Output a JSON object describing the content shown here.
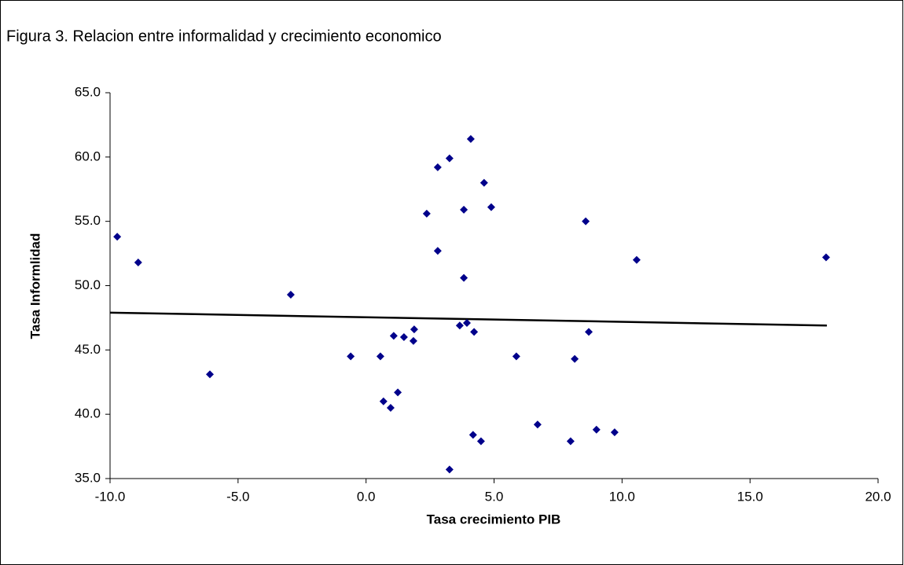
{
  "chart_data": {
    "type": "scatter",
    "title": "Figura 3. Relacion entre informalidad y crecimiento economico",
    "x_label": "Tasa crecimiento PIB",
    "y_label": "Tasa Informlidad",
    "color": "#00008b",
    "x": [
      -9.72,
      -8.9,
      -6.1,
      -2.94,
      -0.6,
      0.56,
      0.68,
      0.96,
      1.08,
      1.24,
      1.48,
      1.85,
      1.88,
      2.37,
      2.8,
      2.8,
      3.26,
      3.26,
      4.09,
      3.82,
      3.82,
      3.66,
      3.94,
      4.22,
      4.18,
      4.49,
      4.61,
      4.89,
      5.87,
      6.7,
      7.99,
      8.15,
      8.58,
      8.7,
      9.0,
      9.71,
      10.57,
      17.97
    ],
    "values": [
      53.8,
      51.8,
      43.1,
      49.3,
      44.5,
      44.5,
      41.0,
      40.5,
      46.1,
      41.7,
      46.0,
      45.7,
      46.6,
      55.6,
      59.2,
      52.7,
      59.9,
      35.7,
      61.4,
      55.9,
      50.6,
      46.9,
      47.1,
      46.4,
      38.4,
      37.9,
      58.0,
      56.1,
      44.5,
      39.2,
      37.9,
      44.3,
      55.0,
      46.4,
      38.8,
      38.6,
      52.0,
      52.2
    ],
    "trendline": {
      "x": [
        -10,
        18
      ],
      "values": [
        47.9,
        46.9
      ],
      "color": "#000000"
    },
    "xlim": [
      -10,
      20
    ],
    "ylim": [
      35,
      65
    ],
    "xticks": [
      {
        "value": -10,
        "label": "-10.0"
      },
      {
        "value": -5,
        "label": "-5.0"
      },
      {
        "value": 0,
        "label": "0.0"
      },
      {
        "value": 5,
        "label": "5.0"
      },
      {
        "value": 10,
        "label": "10.0"
      },
      {
        "value": 15,
        "label": "15.0"
      },
      {
        "value": 20,
        "label": "20.0"
      }
    ],
    "yticks": [
      {
        "value": 35,
        "label": "35.0"
      },
      {
        "value": 40,
        "label": "40.0"
      },
      {
        "value": 45,
        "label": "45.0"
      },
      {
        "value": 50,
        "label": "50.0"
      },
      {
        "value": 55,
        "label": "55.0"
      },
      {
        "value": 60,
        "label": "60.0"
      },
      {
        "value": 65,
        "label": "65.0"
      }
    ],
    "grid": false
  }
}
